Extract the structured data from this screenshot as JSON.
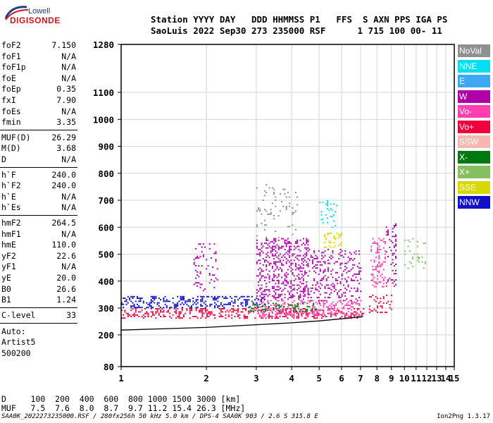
{
  "logo": {
    "line1": "Lowell",
    "line2": "DIGISONDE"
  },
  "header": {
    "line1": "Station YYYY DAY   DDD HHMMSS P1   FFS  S AXN PPS IGA PS",
    "line2": "SaoLuis 2022 Sep30 273 235000 RSF      1 715 100 00- 11"
  },
  "params_group1": [
    {
      "name": "foF2",
      "value": "7.150"
    },
    {
      "name": "foF1",
      "value": "N/A"
    },
    {
      "name": "foF1p",
      "value": "N/A"
    },
    {
      "name": "foE",
      "value": "N/A"
    },
    {
      "name": "foEp",
      "value": "0.35"
    },
    {
      "name": "fxI",
      "value": "7.90"
    },
    {
      "name": "foEs",
      "value": "N/A"
    },
    {
      "name": "fmin",
      "value": "3.35"
    }
  ],
  "params_group2": [
    {
      "name": "MUF(D)",
      "value": "26.29"
    },
    {
      "name": "M(D)",
      "value": "3.68"
    },
    {
      "name": "D",
      "value": "N/A"
    }
  ],
  "params_group3": [
    {
      "name": "h`F",
      "value": "240.0"
    },
    {
      "name": "h`F2",
      "value": "240.0"
    },
    {
      "name": "h`E",
      "value": "N/A"
    },
    {
      "name": "h`Es",
      "value": "N/A"
    }
  ],
  "params_group4": [
    {
      "name": "hmF2",
      "value": "264.5"
    },
    {
      "name": "hmF1",
      "value": "N/A"
    },
    {
      "name": "hmE",
      "value": "110.0"
    },
    {
      "name": "yF2",
      "value": "22.6"
    },
    {
      "name": "yF1",
      "value": "N/A"
    },
    {
      "name": "yE",
      "value": "20.0"
    },
    {
      "name": "B0",
      "value": "26.6"
    },
    {
      "name": "B1",
      "value": "1.24"
    }
  ],
  "clevel": {
    "name": "C-level",
    "value": "33"
  },
  "auto": {
    "line1": "Auto:",
    "line2": "Artist5",
    "line3": "500200"
  },
  "legend": [
    {
      "label": "NoVal",
      "color": "#909090"
    },
    {
      "label": "NNE",
      "color": "#00e0f0"
    },
    {
      "label": "E",
      "color": "#3fa8f4"
    },
    {
      "label": "W",
      "color": "#b000a8"
    },
    {
      "label": "Vo-",
      "color": "#ff40b0"
    },
    {
      "label": "Vo+",
      "color": "#f0003c"
    },
    {
      "label": "SSW",
      "color": "#f4b8b0"
    },
    {
      "label": "X-",
      "color": "#007a10"
    },
    {
      "label": "X+",
      "color": "#84c060"
    },
    {
      "label": "SSE",
      "color": "#d8d800"
    },
    {
      "label": "NNW",
      "color": "#1010c8"
    }
  ],
  "bottom": {
    "d_row": "D     100  200  400  600  800 1000 1500 3000 [km]",
    "muf_row": "MUF   7.5  7.6  8.0  8.7  9.7 11.2 15.4 26.3 [MHz]"
  },
  "footer": {
    "left": "SAA0K_2022273235000.RSF / 280fx256h 50 kHz 5.0 km / DPS-4 SAA0K 903 / 2.6 S 315.8 E",
    "right": "Ion2Png 1.3.17"
  },
  "chart_data": {
    "type": "scatter",
    "x_ticks": [
      1,
      2,
      3,
      4,
      5,
      6,
      7,
      8,
      9,
      10,
      11,
      12,
      13,
      14,
      15
    ],
    "y_ticks": [
      80,
      200,
      300,
      400,
      500,
      600,
      700,
      800,
      900,
      1000,
      1100,
      1280
    ],
    "xlim": [
      1,
      15
    ],
    "ylim": [
      80,
      1280
    ],
    "x_scale": "log",
    "y_scale": "linear-upper-compressed",
    "xlabel": "",
    "ylabel": "",
    "clusters": [
      {
        "label": "Vo+",
        "fmin": 1.0,
        "fmax": 7.2,
        "hmin": 260,
        "hmax": 300,
        "density": 0.35
      },
      {
        "label": "Vo-",
        "fmin": 3.0,
        "fmax": 7.0,
        "hmin": 270,
        "hmax": 330,
        "density": 0.3
      },
      {
        "label": "NNW",
        "fmin": 1.0,
        "fmax": 3.2,
        "hmin": 300,
        "hmax": 345,
        "density": 0.35
      },
      {
        "label": "W",
        "fmin": 3.0,
        "fmax": 4.6,
        "hmin": 330,
        "hmax": 560,
        "density": 0.3
      },
      {
        "label": "W",
        "fmin": 4.6,
        "fmax": 7.0,
        "hmin": 330,
        "hmax": 520,
        "density": 0.2
      },
      {
        "label": "X-",
        "fmin": 2.8,
        "fmax": 5.0,
        "hmin": 290,
        "hmax": 320,
        "density": 0.2
      },
      {
        "label": "Vo-",
        "fmin": 7.6,
        "fmax": 8.6,
        "hmin": 380,
        "hmax": 560,
        "density": 0.25
      },
      {
        "label": "W",
        "fmin": 8.6,
        "fmax": 9.3,
        "hmin": 380,
        "hmax": 620,
        "density": 0.2
      },
      {
        "label": "Vo+",
        "fmin": 7.5,
        "fmax": 9.0,
        "hmin": 285,
        "hmax": 350,
        "density": 0.2
      },
      {
        "label": "X+",
        "fmin": 10.0,
        "fmax": 11.8,
        "hmin": 450,
        "hmax": 560,
        "density": 0.12
      },
      {
        "label": "NNE",
        "fmin": 5.0,
        "fmax": 5.8,
        "hmin": 600,
        "hmax": 700,
        "density": 0.1
      },
      {
        "label": "SSE",
        "fmin": 5.2,
        "fmax": 6.0,
        "hmin": 520,
        "hmax": 580,
        "density": 0.2
      },
      {
        "label": "NoVal",
        "fmin": 3.0,
        "fmax": 4.2,
        "hmin": 560,
        "hmax": 760,
        "density": 0.08
      },
      {
        "label": "W",
        "fmin": 1.8,
        "fmax": 2.2,
        "hmin": 360,
        "hmax": 540,
        "density": 0.12
      }
    ],
    "trace": [
      {
        "x": 1.0,
        "y": 218
      },
      {
        "x": 2.0,
        "y": 228
      },
      {
        "x": 3.0,
        "y": 238
      },
      {
        "x": 4.0,
        "y": 245
      },
      {
        "x": 5.0,
        "y": 252
      },
      {
        "x": 6.0,
        "y": 260
      },
      {
        "x": 7.15,
        "y": 268
      }
    ]
  }
}
